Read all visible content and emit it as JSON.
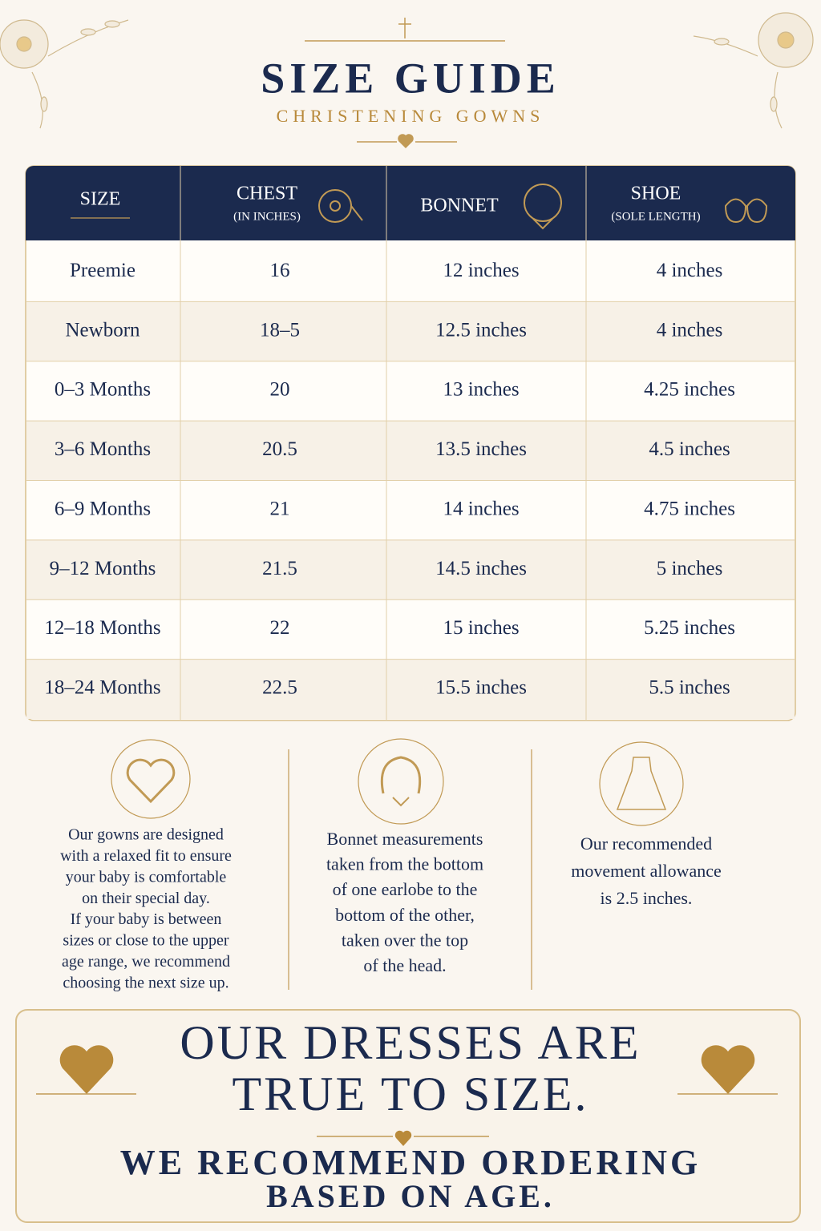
{
  "header": {
    "title": "SIZE GUIDE",
    "subtitle": "CHRISTENING GOWNS"
  },
  "table": {
    "headers": [
      {
        "label": "SIZE"
      },
      {
        "label": "CHEST",
        "sub": "(IN INCHES)"
      },
      {
        "label": "BONNET"
      },
      {
        "label": "SHOE",
        "sub": "(SOLE LENGTH)"
      }
    ],
    "rows": [
      [
        "Preemie",
        "16",
        "12 inches",
        "4 inches"
      ],
      [
        "Newborn",
        "18–5",
        "12.5 inches",
        "4 inches"
      ],
      [
        "0–3 Months",
        "20",
        "13 inches",
        "4.25 inches"
      ],
      [
        "3–6 Months",
        "20.5",
        "13.5 inches",
        "4.5 inches"
      ],
      [
        "6–9 Months",
        "21",
        "14 inches",
        "4.75 inches"
      ],
      [
        "9–12 Months",
        "21.5",
        "14.5 inches",
        "5 inches"
      ],
      [
        "12–18 Months",
        "22",
        "15 inches",
        "5.25 inches"
      ],
      [
        "18–24 Months",
        "22.5",
        "15.5 inches",
        "5.5 inches"
      ]
    ]
  },
  "notes": [
    {
      "lines": [
        "Our gowns are designed",
        "with a relaxed fit to ensure",
        "your baby is comfortable",
        "on their special day.",
        "If your baby is between",
        "sizes or close to the upper",
        "age range, we recommend",
        "choosing the next size up."
      ]
    },
    {
      "lines": [
        "Bonnet measurements",
        "taken from the bottom",
        "of one earlobe to the",
        "bottom of the other,",
        "taken over the top",
        "of the head."
      ]
    },
    {
      "lines": [
        "Our recommended",
        "movement allowance",
        "is 2.5 inches."
      ]
    }
  ],
  "banner": {
    "lines": [
      "OUR DRESSES ARE",
      "TRUE TO SIZE."
    ],
    "sub_lines": [
      "WE RECOMMEND ORDERING",
      "BASED ON AGE."
    ]
  }
}
